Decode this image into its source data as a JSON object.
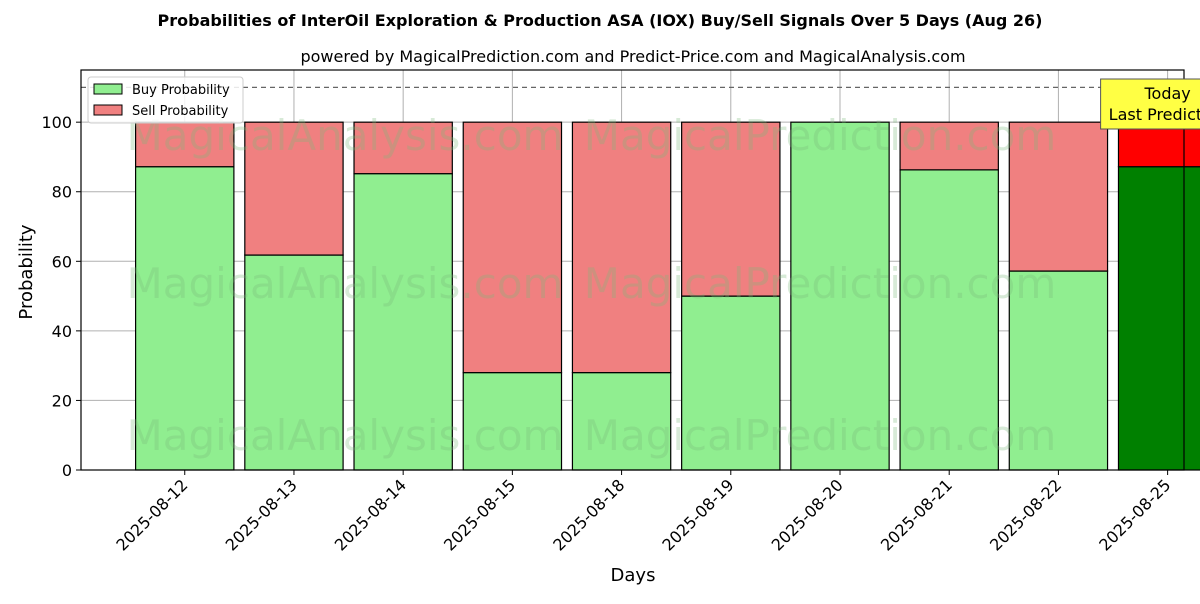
{
  "chart_data": {
    "type": "bar",
    "stacked": true,
    "title": "Probabilities of InterOil Exploration & Production ASA (IOX) Buy/Sell Signals Over 5 Days (Aug 26)",
    "subtitle": "powered by MagicalPrediction.com and Predict-Price.com and MagicalAnalysis.com",
    "xlabel": "Days",
    "ylabel": "Probability",
    "ylim": [
      0,
      115
    ],
    "yticks": [
      0,
      20,
      40,
      60,
      80,
      100
    ],
    "grid": true,
    "legend_position": "top-left",
    "reference_line": 110,
    "categories": [
      "2025-08-12",
      "2025-08-13",
      "2025-08-14",
      "2025-08-15",
      "2025-08-18",
      "2025-08-19",
      "2025-08-20",
      "2025-08-21",
      "2025-08-22",
      "2025-08-25"
    ],
    "series": [
      {
        "name": "Buy Probability",
        "color": "#90ee90",
        "highlight_color": "#008000",
        "values": [
          87.2,
          61.8,
          85.2,
          28.0,
          28.0,
          50.0,
          100.0,
          86.3,
          57.2,
          87.2
        ]
      },
      {
        "name": "Sell Probability",
        "color": "#f08080",
        "highlight_color": "#ff0000",
        "values": [
          12.8,
          38.2,
          14.8,
          72.0,
          72.0,
          50.0,
          0.0,
          13.7,
          42.8,
          12.8
        ]
      }
    ],
    "highlight_index": 9,
    "annotation": {
      "line1": "Today",
      "line2": "Last Prediction",
      "background": "#ffff44"
    },
    "watermarks": [
      "MagicalAnalysis.com",
      "MagicalPrediction.com"
    ]
  }
}
